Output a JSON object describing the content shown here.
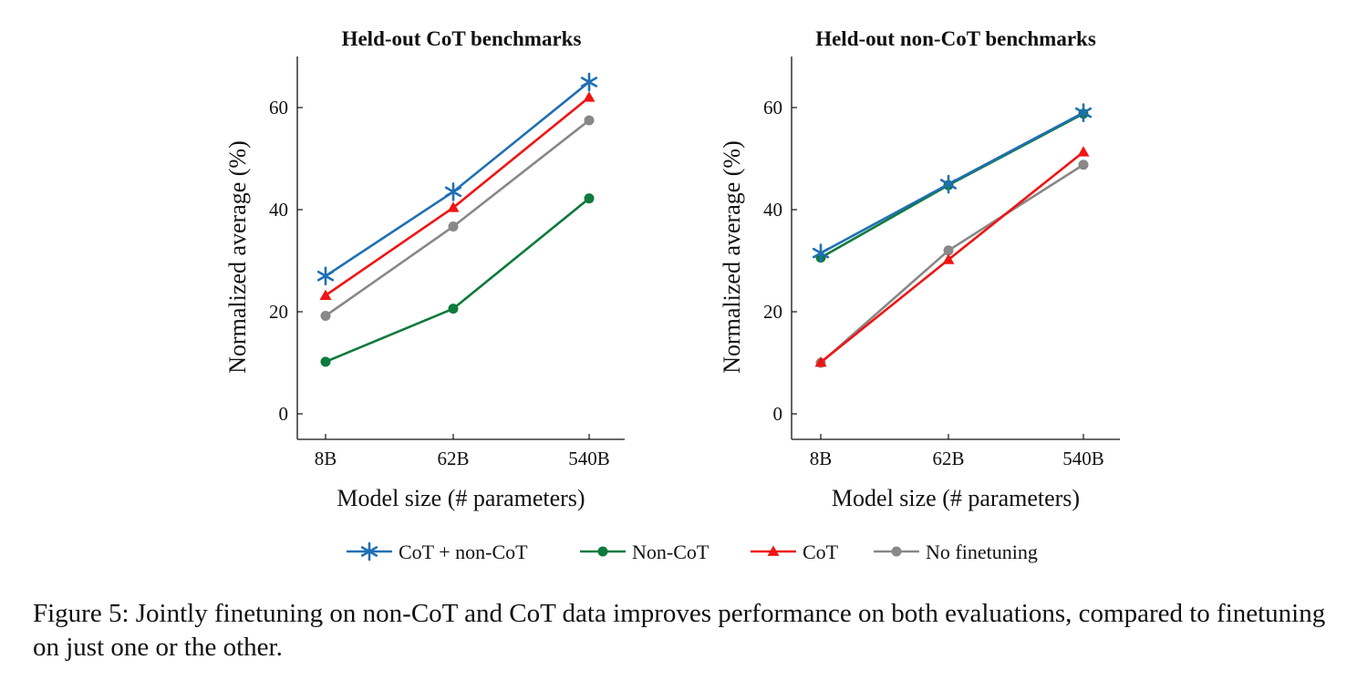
{
  "chart_data": [
    {
      "type": "line",
      "title": "Held-out CoT benchmarks",
      "xlabel": "Model size (# parameters)",
      "ylabel": "Normalized average (%)",
      "categories": [
        "8B",
        "62B",
        "540B"
      ],
      "ylim": [
        -5,
        70
      ],
      "yticks": [
        0,
        20,
        40,
        60
      ],
      "grid": false,
      "series": [
        {
          "name": "CoT + non-CoT",
          "color": "#1f6fb4",
          "marker": "star",
          "values": [
            27.0,
            43.5,
            65.0
          ]
        },
        {
          "name": "Non-CoT",
          "color": "#0e7a3c",
          "marker": "circle",
          "values": [
            10.2,
            20.6,
            42.2
          ]
        },
        {
          "name": "CoT",
          "color": "#f01414",
          "marker": "triangle",
          "values": [
            23.2,
            40.4,
            62.0
          ]
        },
        {
          "name": "No finetuning",
          "color": "#888888",
          "marker": "circle",
          "values": [
            19.2,
            36.7,
            57.5
          ]
        }
      ]
    },
    {
      "type": "line",
      "title": "Held-out non-CoT benchmarks",
      "xlabel": "Model size (# parameters)",
      "ylabel": "Normalized average (%)",
      "categories": [
        "8B",
        "62B",
        "540B"
      ],
      "ylim": [
        -5,
        70
      ],
      "yticks": [
        0,
        20,
        40,
        60
      ],
      "grid": false,
      "series": [
        {
          "name": "CoT + non-CoT",
          "color": "#1f6fb4",
          "marker": "star",
          "values": [
            31.5,
            45.0,
            59.0
          ]
        },
        {
          "name": "Non-CoT",
          "color": "#0e7a3c",
          "marker": "circle",
          "values": [
            30.6,
            44.8,
            58.8
          ]
        },
        {
          "name": "CoT",
          "color": "#f01414",
          "marker": "triangle",
          "values": [
            10.1,
            30.2,
            51.3
          ]
        },
        {
          "name": "No finetuning",
          "color": "#888888",
          "marker": "circle",
          "values": [
            10.0,
            32.0,
            48.8
          ]
        }
      ]
    }
  ],
  "legend": {
    "placement": "bottom",
    "items": [
      {
        "label": "CoT + non-CoT",
        "color": "#1f6fb4",
        "marker": "star"
      },
      {
        "label": "Non-CoT",
        "color": "#0e7a3c",
        "marker": "circle"
      },
      {
        "label": "CoT",
        "color": "#f01414",
        "marker": "triangle"
      },
      {
        "label": "No finetuning",
        "color": "#888888",
        "marker": "circle"
      }
    ]
  },
  "caption": "Figure 5: Jointly finetuning on non-CoT and CoT data improves performance on both evaluations, compared to finetuning on just one or the other."
}
